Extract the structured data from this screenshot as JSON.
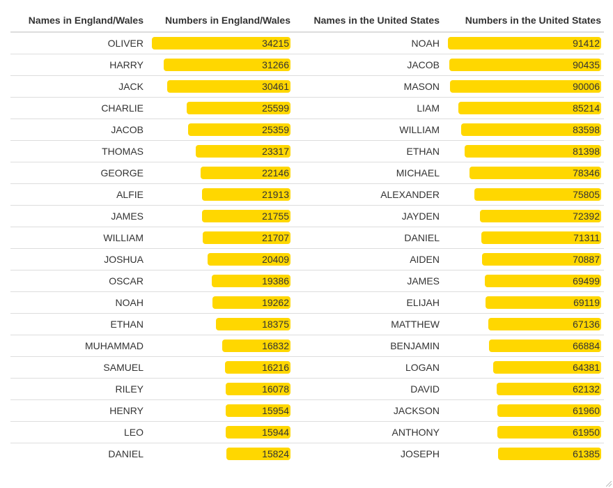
{
  "table": {
    "headers": [
      "Names in England/Wales",
      "Numbers in England/Wales",
      "Names in the United States",
      "Numbers in the United States"
    ],
    "bar_color": "#FFD700"
  },
  "chart_data": {
    "type": "table",
    "columns": [
      "Names in England/Wales",
      "Numbers in England/Wales",
      "Names in the United States",
      "Numbers in the United States"
    ],
    "rows": [
      [
        "OLIVER",
        34215,
        "NOAH",
        91412
      ],
      [
        "HARRY",
        31266,
        "JACOB",
        90435
      ],
      [
        "JACK",
        30461,
        "MASON",
        90006
      ],
      [
        "CHARLIE",
        25599,
        "LIAM",
        85214
      ],
      [
        "JACOB",
        25359,
        "WILLIAM",
        83598
      ],
      [
        "THOMAS",
        23317,
        "ETHAN",
        81398
      ],
      [
        "GEORGE",
        22146,
        "MICHAEL",
        78346
      ],
      [
        "ALFIE",
        21913,
        "ALEXANDER",
        75805
      ],
      [
        "JAMES",
        21755,
        "JAYDEN",
        72392
      ],
      [
        "WILLIAM",
        21707,
        "DANIEL",
        71311
      ],
      [
        "JOSHUA",
        20409,
        "AIDEN",
        70887
      ],
      [
        "OSCAR",
        19386,
        "JAMES",
        69499
      ],
      [
        "NOAH",
        19262,
        "ELIJAH",
        69119
      ],
      [
        "ETHAN",
        18375,
        "MATTHEW",
        67136
      ],
      [
        "MUHAMMAD",
        16832,
        "BENJAMIN",
        66884
      ],
      [
        "SAMUEL",
        16216,
        "LOGAN",
        64381
      ],
      [
        "RILEY",
        16078,
        "DAVID",
        62132
      ],
      [
        "HENRY",
        15954,
        "JACKSON",
        61960
      ],
      [
        "LEO",
        15944,
        "ANTHONY",
        61950
      ],
      [
        "DANIEL",
        15824,
        "JOSEPH",
        61385
      ]
    ],
    "bar_columns": [
      1,
      3
    ]
  }
}
